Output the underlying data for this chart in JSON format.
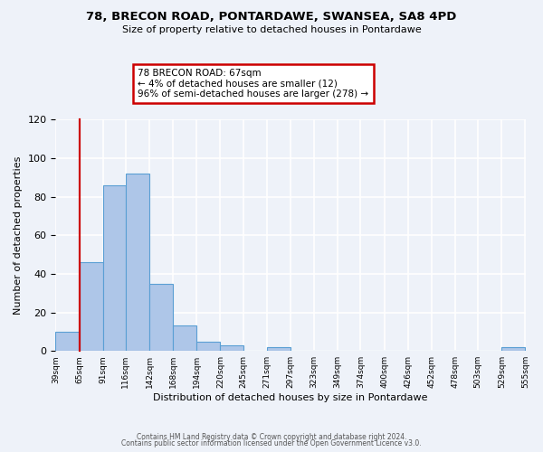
{
  "title": "78, BRECON ROAD, PONTARDAWE, SWANSEA, SA8 4PD",
  "subtitle": "Size of property relative to detached houses in Pontardawe",
  "xlabel": "Distribution of detached houses by size in Pontardawe",
  "ylabel": "Number of detached properties",
  "footer_line1": "Contains HM Land Registry data © Crown copyright and database right 2024.",
  "footer_line2": "Contains public sector information licensed under the Open Government Licence v3.0.",
  "bin_edges": [
    39,
    65,
    91,
    116,
    142,
    168,
    194,
    220,
    245,
    271,
    297,
    323,
    349,
    374,
    400,
    426,
    452,
    478,
    503,
    529,
    555
  ],
  "bin_counts": [
    10,
    46,
    86,
    92,
    35,
    13,
    5,
    3,
    0,
    2,
    0,
    0,
    0,
    0,
    0,
    0,
    0,
    0,
    0,
    2
  ],
  "bar_color": "#aec6e8",
  "bar_edge_color": "#5a9fd4",
  "property_line_x": 65,
  "property_line_color": "#cc0000",
  "annotation_line1": "78 BRECON ROAD: 67sqm",
  "annotation_line2": "← 4% of detached houses are smaller (12)",
  "annotation_line3": "96% of semi-detached houses are larger (278) →",
  "annotation_box_color": "#cc0000",
  "ylim": [
    0,
    120
  ],
  "yticks": [
    0,
    20,
    40,
    60,
    80,
    100,
    120
  ],
  "background_color": "#eef2f9",
  "grid_color": "#ffffff"
}
